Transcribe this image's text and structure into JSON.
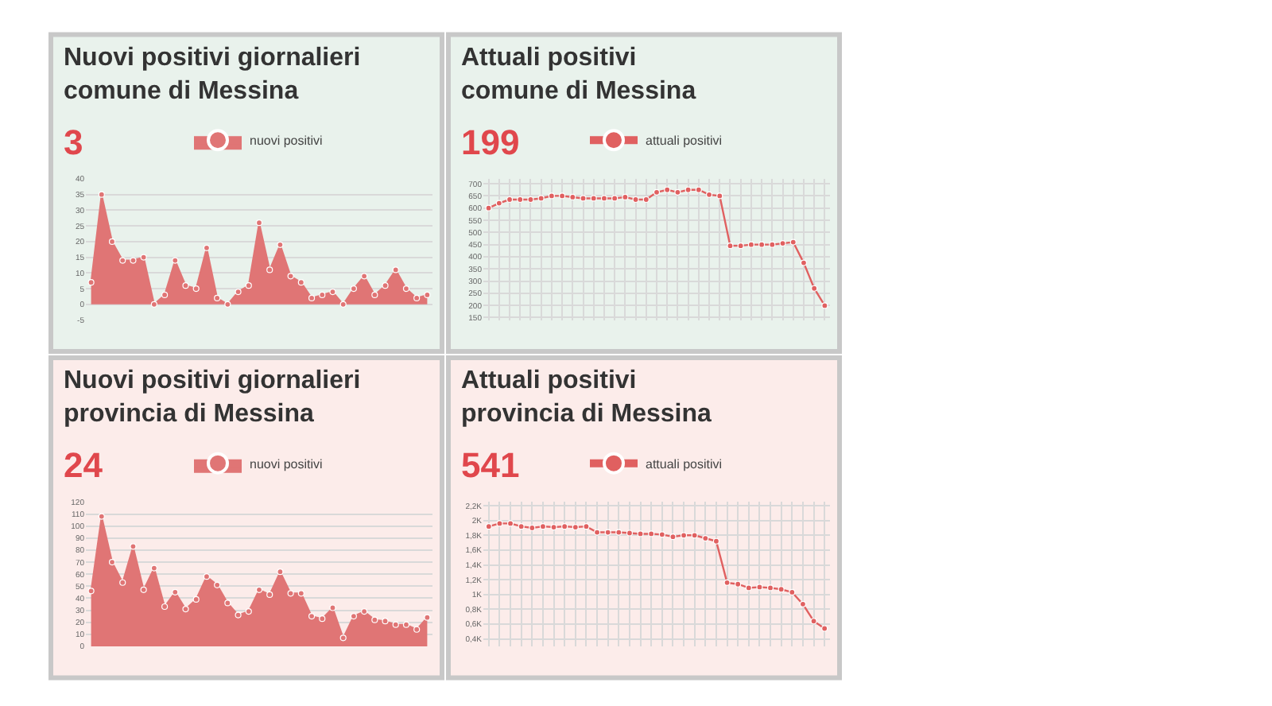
{
  "chart_data": [
    {
      "type": "area",
      "title": "Nuovi positivi giornalieri\ncomune di Messina",
      "subtitle": "3",
      "categories": [
        null,
        null,
        null,
        null,
        null,
        null,
        null,
        null,
        null,
        null,
        null,
        null,
        null,
        null,
        null,
        null,
        null,
        null,
        null,
        null,
        null,
        null,
        null,
        null,
        null,
        null,
        null,
        null,
        null,
        null,
        null,
        null,
        null
      ],
      "series": [
        {
          "name": "nuovi positivi",
          "color": "#e07575",
          "values": [
            7,
            35,
            20,
            14,
            14,
            15,
            0,
            3,
            14,
            6,
            5,
            18,
            2,
            0,
            4,
            6,
            26,
            11,
            19,
            9,
            7,
            2,
            3,
            4,
            0,
            5,
            9,
            3,
            6,
            11,
            5,
            2,
            3
          ]
        }
      ],
      "ylim": [
        -5,
        40
      ],
      "yticks": [
        -5,
        0,
        5,
        10,
        15,
        20,
        25,
        30,
        35,
        40
      ],
      "grid": "y",
      "legend": "top",
      "marker": "circle",
      "tick_labels": "y"
    },
    {
      "type": "line",
      "title": "Attuali positivi\ncomune di Messina",
      "subtitle": "199",
      "categories": [
        null,
        null,
        null,
        null,
        null,
        null,
        null,
        null,
        null,
        null,
        null,
        null,
        null,
        null,
        null,
        null,
        null,
        null,
        null,
        null,
        null,
        null,
        null,
        null,
        null,
        null,
        null,
        null,
        null,
        null,
        null,
        null,
        null
      ],
      "series": [
        {
          "name": "attuali positivi",
          "color": "#e06060",
          "values": [
            600,
            620,
            635,
            635,
            635,
            640,
            650,
            650,
            645,
            640,
            640,
            640,
            640,
            645,
            635,
            635,
            665,
            675,
            665,
            675,
            675,
            655,
            650,
            445,
            445,
            450,
            450,
            450,
            455,
            460,
            375,
            270,
            199
          ]
        }
      ],
      "ylim": [
        140,
        720
      ],
      "yticks": [
        150,
        200,
        250,
        300,
        350,
        400,
        450,
        500,
        550,
        600,
        650,
        700
      ],
      "grid": true,
      "legend": "top",
      "marker": "circle",
      "tick_labels": "y"
    },
    {
      "type": "area",
      "title": "Nuovi positivi giornalieri\nprovincia di Messina",
      "subtitle": "24",
      "categories": [
        null,
        null,
        null,
        null,
        null,
        null,
        null,
        null,
        null,
        null,
        null,
        null,
        null,
        null,
        null,
        null,
        null,
        null,
        null,
        null,
        null,
        null,
        null,
        null,
        null,
        null,
        null,
        null,
        null,
        null,
        null,
        null,
        null
      ],
      "series": [
        {
          "name": "nuovi positivi",
          "color": "#e07575",
          "values": [
            46,
            108,
            70,
            53,
            83,
            47,
            65,
            33,
            45,
            31,
            39,
            58,
            51,
            36,
            26,
            29,
            47,
            43,
            62,
            44,
            44,
            25,
            23,
            32,
            7,
            25,
            29,
            22,
            21,
            18,
            18,
            14,
            24
          ]
        }
      ],
      "ylim": [
        0,
        120
      ],
      "yticks": [
        0,
        10,
        20,
        30,
        40,
        50,
        60,
        70,
        80,
        90,
        100,
        110,
        120
      ],
      "grid": "y",
      "legend": "top",
      "marker": "circle",
      "tick_labels": "y"
    },
    {
      "type": "line",
      "title": "Attuali positivi\nprovincia di Messina",
      "subtitle": "541",
      "categories": [
        null,
        null,
        null,
        null,
        null,
        null,
        null,
        null,
        null,
        null,
        null,
        null,
        null,
        null,
        null,
        null,
        null,
        null,
        null,
        null,
        null,
        null,
        null,
        null,
        null,
        null,
        null,
        null,
        null,
        null,
        null,
        null
      ],
      "series": [
        {
          "name": "attuali positivi",
          "color": "#e06060",
          "values": [
            1920,
            1960,
            1960,
            1920,
            1900,
            1920,
            1910,
            1920,
            1910,
            1920,
            1840,
            1840,
            1840,
            1830,
            1820,
            1820,
            1810,
            1780,
            1800,
            1800,
            1760,
            1720,
            1160,
            1140,
            1090,
            1100,
            1090,
            1070,
            1030,
            870,
            640,
            541
          ]
        }
      ],
      "ylim": [
        300,
        2250
      ],
      "yticks": [
        {
          "value": 400,
          "label": "0,4K"
        },
        {
          "value": 600,
          "label": "0,6K"
        },
        {
          "value": 800,
          "label": "0,8K"
        },
        {
          "value": 1000,
          "label": "1K"
        },
        {
          "value": 1200,
          "label": "1,2K"
        },
        {
          "value": 1400,
          "label": "1,4K"
        },
        {
          "value": 1600,
          "label": "1,6K"
        },
        {
          "value": 1800,
          "label": "1,8K"
        },
        {
          "value": 2000,
          "label": "2K"
        },
        {
          "value": 2200,
          "label": "2,2K"
        }
      ],
      "grid": true,
      "legend": "top",
      "marker": "circle",
      "tick_labels": "y"
    }
  ]
}
